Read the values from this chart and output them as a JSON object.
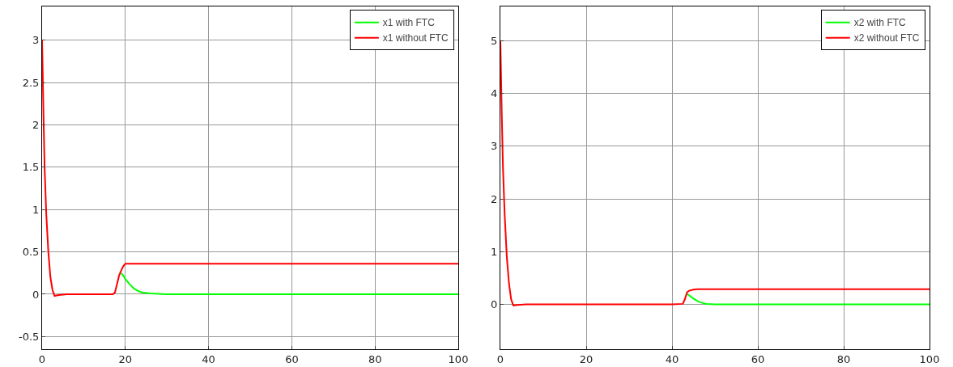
{
  "chart_data": [
    {
      "type": "line",
      "xlim": [
        0,
        100
      ],
      "xticks": [
        0,
        20,
        40,
        60,
        80,
        100
      ],
      "ylim": [
        -0.65,
        3.4
      ],
      "yticks": [
        -0.5,
        0,
        0.5,
        1,
        1.5,
        2,
        2.5,
        3
      ],
      "grid": true,
      "legend": "top right",
      "series": [
        {
          "name": "x1 with FTC",
          "color": "#00ff00",
          "x": [
            19,
            19.5,
            20,
            21,
            22,
            23,
            24,
            26,
            30,
            40,
            60,
            80,
            100
          ],
          "values": [
            0.25,
            0.22,
            0.18,
            0.12,
            0.07,
            0.04,
            0.02,
            0.01,
            0,
            0,
            0,
            0,
            0
          ]
        },
        {
          "name": "x1 without FTC",
          "color": "#ff0000",
          "x": [
            0,
            0.3,
            0.6,
            1,
            1.5,
            2,
            2.5,
            3,
            4,
            6,
            10,
            14,
            17,
            17.5,
            18,
            18.5,
            19,
            19.5,
            20,
            21,
            25,
            30,
            40,
            60,
            80,
            100
          ],
          "values": [
            3,
            2.2,
            1.5,
            0.95,
            0.5,
            0.2,
            0.05,
            -0.02,
            -0.01,
            0,
            0,
            0,
            0,
            0.02,
            0.12,
            0.22,
            0.28,
            0.33,
            0.36,
            0.36,
            0.36,
            0.36,
            0.36,
            0.36,
            0.36,
            0.36
          ]
        }
      ]
    },
    {
      "type": "line",
      "xlim": [
        0,
        100
      ],
      "xticks": [
        0,
        20,
        40,
        60,
        80,
        100
      ],
      "ylim": [
        -0.85,
        5.65
      ],
      "yticks": [
        0,
        1,
        2,
        3,
        4,
        5
      ],
      "grid": true,
      "legend": "top right",
      "series": [
        {
          "name": "x2 with FTC",
          "color": "#00ff00",
          "x": [
            43.5,
            44,
            45,
            46,
            47,
            48,
            50,
            55,
            60,
            80,
            100
          ],
          "values": [
            0.2,
            0.17,
            0.11,
            0.06,
            0.03,
            0.01,
            0,
            0,
            0,
            0,
            0
          ]
        },
        {
          "name": "x2 without FTC",
          "color": "#ff0000",
          "x": [
            0,
            0.3,
            0.6,
            1,
            1.5,
            2,
            2.5,
            3,
            4,
            6,
            10,
            20,
            30,
            40,
            42.5,
            43,
            43.5,
            44,
            45,
            46,
            50,
            60,
            80,
            100
          ],
          "values": [
            5,
            3.7,
            2.6,
            1.7,
            0.9,
            0.4,
            0.1,
            -0.02,
            -0.01,
            0,
            0,
            0,
            0,
            0,
            0.01,
            0.1,
            0.23,
            0.26,
            0.28,
            0.29,
            0.29,
            0.29,
            0.29,
            0.29
          ]
        }
      ]
    }
  ]
}
